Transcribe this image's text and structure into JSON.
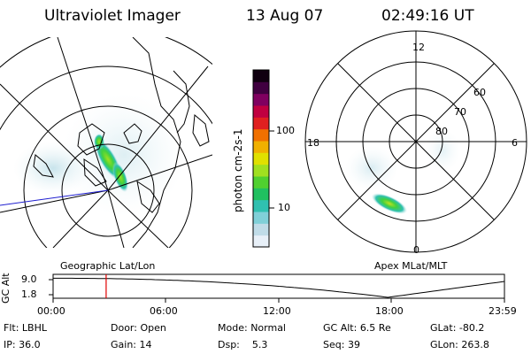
{
  "header": {
    "title": "Ultraviolet Imager",
    "date": "13 Aug 07",
    "time": "02:49:16 UT"
  },
  "colorbar": {
    "unit_label": "photon cm-2s-1",
    "ticks": [
      "100",
      "10"
    ],
    "colors": [
      "#e8f0f8",
      "#c0dce8",
      "#80d0d8",
      "#30c0b0",
      "#20c060",
      "#50d030",
      "#a0e020",
      "#e0e000",
      "#f0b000",
      "#f07000",
      "#e02020",
      "#c00040",
      "#800060",
      "#400040",
      "#100010"
    ]
  },
  "geo_map": {
    "label": "Geographic Lat/Lon"
  },
  "polar_plot": {
    "label": "Apex MLat/MLT",
    "mlt_labels": {
      "top": "12",
      "left": "18",
      "right": "6",
      "bottom": "0"
    },
    "mlat_labels": [
      "60",
      "70",
      "80"
    ]
  },
  "altitude_plot": {
    "ylabel": "GC Alt",
    "yticks": [
      "9.0",
      "1.8"
    ],
    "xticks": [
      "00:00",
      "06:00",
      "12:00",
      "18:00",
      "23:59"
    ],
    "current_time_marker_hours": 2.82
  },
  "info": {
    "filter_label": "Flt:",
    "filter_value": "LBHL",
    "ip_label": "IP:",
    "ip_value": "36.0",
    "door_label": "Door:",
    "door_value": "Open",
    "gain_label": "Gain:",
    "gain_value": "14",
    "mode_label": "Mode:",
    "mode_value": "Normal",
    "dsp_label": "Dsp:",
    "dsp_value": "5.3",
    "gcalt_label": "GC Alt:",
    "gcalt_value": "6.5 Re",
    "seq_label": "Seq:",
    "seq_value": "39",
    "glat_label": "GLat:",
    "glat_value": "-80.2",
    "glon_label": "GLon:",
    "glon_value": "263.8"
  }
}
